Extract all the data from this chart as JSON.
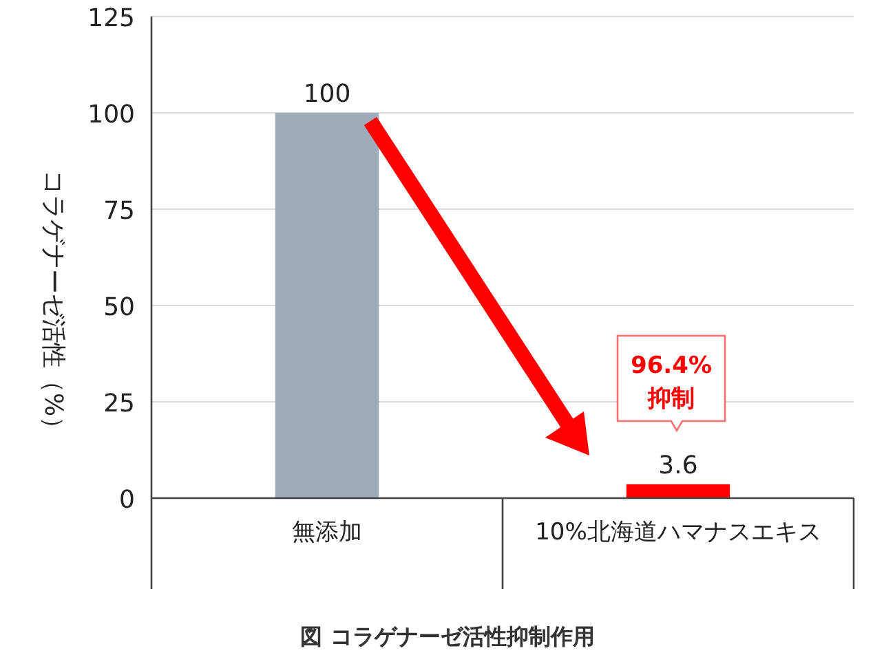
{
  "chart_data": {
    "type": "bar",
    "title": "図 コラゲナーゼ活性抑制作用",
    "ylabel": "コラゲナーゼ活性（%）",
    "categories": [
      "無添加",
      "10%北海道ハマナスエキス"
    ],
    "values": [
      100,
      3.6
    ],
    "colors": [
      "#9eabb8",
      "#ff0000"
    ],
    "ylim": [
      0,
      125
    ],
    "yticks": [
      0,
      25,
      50,
      75,
      100,
      125
    ],
    "grid": "y",
    "data_labels": true,
    "annotations": [
      "96.4%",
      "抑制"
    ]
  }
}
